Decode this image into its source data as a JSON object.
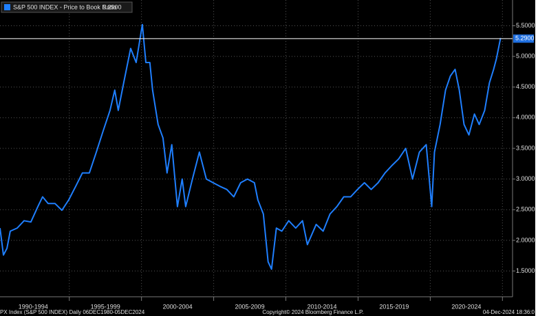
{
  "chart_data": {
    "type": "line",
    "series": [
      {
        "name": "S&P 500 INDEX - Price to Book Ratio",
        "color": "#1f7fff",
        "x": [
          1990.2,
          1990.44,
          1990.68,
          1990.91,
          1991.39,
          1991.87,
          1992.34,
          1992.82,
          1993.15,
          1993.53,
          1994.01,
          1994.49,
          1994.96,
          1995.44,
          1995.91,
          1996.39,
          1996.87,
          1997.34,
          1997.82,
          1998.15,
          1998.39,
          1998.77,
          1999.25,
          1999.63,
          2000.06,
          2000.3,
          2000.58,
          2000.77,
          2001.15,
          2001.49,
          2001.77,
          2002.1,
          2002.49,
          2002.82,
          2003.06,
          2003.53,
          2004.01,
          2004.49,
          2004.96,
          2005.44,
          2005.91,
          2006.39,
          2006.87,
          2007.34,
          2007.82,
          2008.06,
          2008.44,
          2008.77,
          2009.01,
          2009.34,
          2009.72,
          2010.2,
          2010.68,
          2011.15,
          2011.49,
          2012.1,
          2012.58,
          2013.06,
          2013.53,
          2014.01,
          2014.49,
          2014.96,
          2015.44,
          2015.91,
          2016.39,
          2016.87,
          2017.34,
          2017.82,
          2018.3,
          2018.77,
          2019.25,
          2019.72,
          2020.1,
          2020.29,
          2020.68,
          2021.06,
          2021.39,
          2021.72,
          2022.01,
          2022.34,
          2022.68,
          2023.06,
          2023.39,
          2023.77,
          2024.1,
          2024.39,
          2024.58,
          2024.87
        ],
        "values": [
          2.2,
          1.76,
          1.87,
          2.15,
          2.2,
          2.32,
          2.3,
          2.55,
          2.71,
          2.6,
          2.6,
          2.49,
          2.66,
          2.88,
          3.1,
          3.1,
          3.44,
          3.78,
          4.12,
          4.45,
          4.12,
          4.57,
          5.13,
          4.9,
          5.52,
          4.9,
          4.9,
          4.45,
          3.89,
          3.67,
          3.1,
          3.56,
          2.55,
          3.0,
          2.55,
          3.0,
          3.44,
          3.0,
          2.94,
          2.88,
          2.83,
          2.71,
          2.94,
          3.0,
          2.94,
          2.66,
          2.43,
          1.65,
          1.53,
          2.2,
          2.15,
          2.32,
          2.2,
          2.32,
          1.93,
          2.26,
          2.15,
          2.43,
          2.55,
          2.71,
          2.71,
          2.83,
          2.94,
          2.83,
          2.94,
          3.1,
          3.22,
          3.33,
          3.5,
          3.0,
          3.44,
          3.56,
          2.55,
          3.44,
          3.89,
          4.45,
          4.68,
          4.79,
          4.45,
          3.89,
          3.72,
          4.06,
          3.89,
          4.12,
          4.57,
          4.79,
          4.96,
          5.3
        ]
      }
    ],
    "last_value": 5.29,
    "last_value_label": "5.2900",
    "xlim": [
      1990.2,
      2025.7
    ],
    "xticks": [
      {
        "value": 1992.5,
        "label": "1990-1994"
      },
      {
        "value": 1997.5,
        "label": "1995-1999"
      },
      {
        "value": 2002.5,
        "label": "2000-2004"
      },
      {
        "value": 2007.5,
        "label": "2005-2009"
      },
      {
        "value": 2012.5,
        "label": "2010-2014"
      },
      {
        "value": 2017.5,
        "label": "2015-2019"
      },
      {
        "value": 2022.5,
        "label": "2020-2024"
      }
    ],
    "xgrid": [
      1995,
      2000,
      2005,
      2010,
      2015,
      2020,
      2025
    ],
    "ylim": [
      1.08,
      5.92
    ],
    "yticks": [
      {
        "value": 1.5,
        "label": "1.5000"
      },
      {
        "value": 2,
        "label": "2.0000"
      },
      {
        "value": 2.5,
        "label": "2.5000"
      },
      {
        "value": 3,
        "label": "3.0000"
      },
      {
        "value": 3.5,
        "label": "3.5000"
      },
      {
        "value": 4,
        "label": "4.0000"
      },
      {
        "value": 4.5,
        "label": "4.5000"
      },
      {
        "value": 5,
        "label": "5.0000"
      },
      {
        "value": 5.5,
        "label": "5.5000"
      }
    ],
    "grid": true,
    "footer": {
      "left": "PX Index (S&P 500 INDEX)  Daily 06DEC1980-05DEC2024",
      "center": "Copyright© 2024 Bloomberg Finance L.P.",
      "right": "04-Dec-2024 18:36:0"
    }
  }
}
